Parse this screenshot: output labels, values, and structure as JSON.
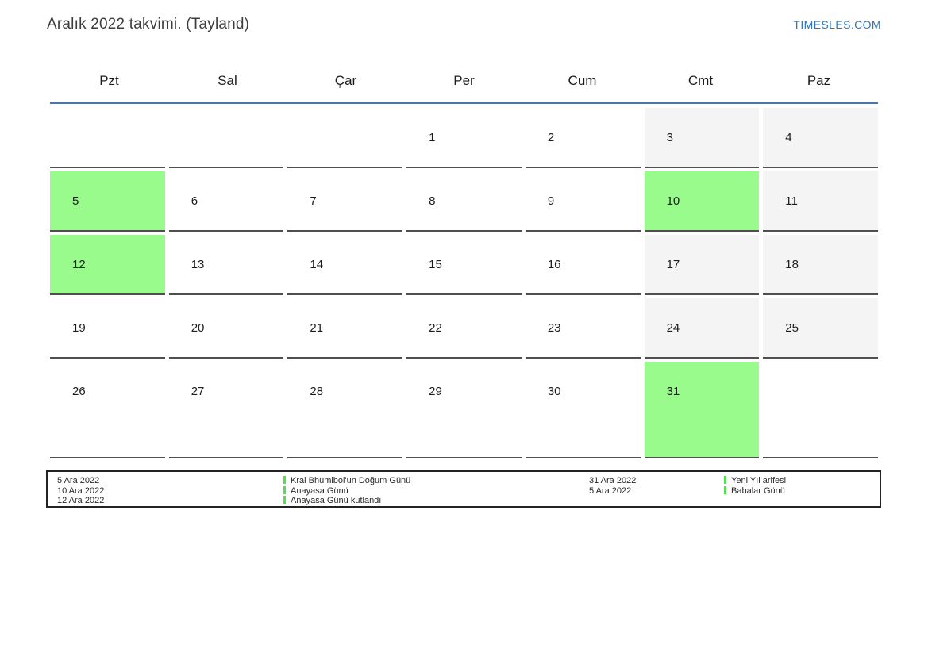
{
  "page": {
    "title": "Aralık 2022 takvimi. (Tayland)",
    "site_link": "TIMESLES.COM"
  },
  "colors": {
    "holiday_green": "#98fb8c",
    "legend_bar_green": "#55dd55",
    "weekend_gray": "#f4f4f4",
    "header_rule_blue": "#54749c",
    "cell_border_dark": "#4f4f4f",
    "link_blue": "#2b76c0"
  },
  "calendar": {
    "day_headers": [
      "Pzt",
      "Sal",
      "Çar",
      "Per",
      "Cum",
      "Cmt",
      "Paz"
    ],
    "weeks": [
      {
        "cells": [
          {
            "day": "",
            "type": "empty"
          },
          {
            "day": "",
            "type": "empty"
          },
          {
            "day": "",
            "type": "empty"
          },
          {
            "day": "1",
            "type": "normal"
          },
          {
            "day": "2",
            "type": "normal"
          },
          {
            "day": "3",
            "type": "weekend"
          },
          {
            "day": "4",
            "type": "weekend"
          }
        ]
      },
      {
        "cells": [
          {
            "day": "5",
            "type": "holiday"
          },
          {
            "day": "6",
            "type": "normal"
          },
          {
            "day": "7",
            "type": "normal"
          },
          {
            "day": "8",
            "type": "normal"
          },
          {
            "day": "9",
            "type": "normal"
          },
          {
            "day": "10",
            "type": "holiday"
          },
          {
            "day": "11",
            "type": "weekend"
          }
        ]
      },
      {
        "cells": [
          {
            "day": "12",
            "type": "holiday"
          },
          {
            "day": "13",
            "type": "normal"
          },
          {
            "day": "14",
            "type": "normal"
          },
          {
            "day": "15",
            "type": "normal"
          },
          {
            "day": "16",
            "type": "normal"
          },
          {
            "day": "17",
            "type": "weekend"
          },
          {
            "day": "18",
            "type": "weekend"
          }
        ]
      },
      {
        "cells": [
          {
            "day": "19",
            "type": "normal"
          },
          {
            "day": "20",
            "type": "normal"
          },
          {
            "day": "21",
            "type": "normal"
          },
          {
            "day": "22",
            "type": "normal"
          },
          {
            "day": "23",
            "type": "normal"
          },
          {
            "day": "24",
            "type": "weekend"
          },
          {
            "day": "25",
            "type": "weekend"
          }
        ]
      },
      {
        "cells": [
          {
            "day": "26",
            "type": "normal"
          },
          {
            "day": "27",
            "type": "normal"
          },
          {
            "day": "28",
            "type": "normal"
          },
          {
            "day": "29",
            "type": "normal"
          },
          {
            "day": "30",
            "type": "normal"
          },
          {
            "day": "31",
            "type": "holiday"
          },
          {
            "day": "",
            "type": "empty"
          }
        ]
      }
    ]
  },
  "legend": {
    "groups": [
      {
        "dates": [
          "5 Ara 2022",
          "10 Ara 2022",
          "12 Ara 2022"
        ],
        "names": [
          "Kral Bhumibol'un Doğum Günü",
          "Anayasa Günü",
          "Anayasa Günü kutlandı"
        ]
      },
      {
        "dates": [
          "31 Ara 2022",
          "5 Ara 2022"
        ],
        "names": [
          "Yeni Yıl arifesi",
          "Babalar Günü"
        ]
      }
    ]
  }
}
